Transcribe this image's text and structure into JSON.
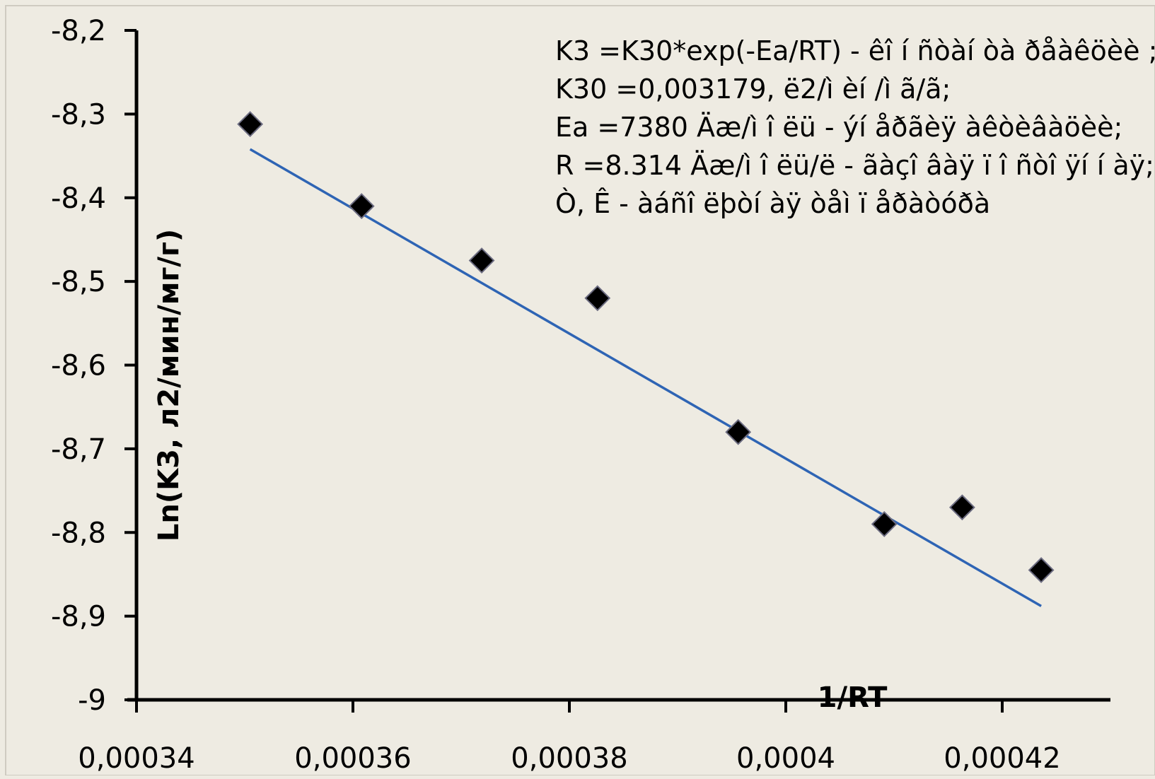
{
  "chart_data": {
    "type": "scatter",
    "title": "",
    "xlabel": "1/RT",
    "ylabel": "Ln(K3, л2/мин/мг/г)",
    "xlim": [
      0.00034,
      0.00043
    ],
    "ylim": [
      -9,
      -8.2
    ],
    "x_ticks": [
      0.00034,
      0.00036,
      0.00038,
      0.0004,
      0.00042
    ],
    "x_tick_labels": [
      "0,00034",
      "0,00036",
      "0,00038",
      "0,0004",
      "0,00042"
    ],
    "y_ticks": [
      -8.2,
      -8.3,
      -8.4,
      -8.5,
      -8.6,
      -8.7,
      -8.8,
      -8.9,
      -9
    ],
    "y_tick_labels": [
      "-8,2",
      "-8,3",
      "-8,4",
      "-8,5",
      "-8,6",
      "-8,7",
      "-8,8",
      "-8,9",
      "-9"
    ],
    "grid": false,
    "series": [
      {
        "marker": "diamond",
        "color": "#000000",
        "x": [
          0.0003505,
          0.0003608,
          0.0003719,
          0.0003826,
          0.0003956,
          0.0004091,
          0.0004163,
          0.0004236
        ],
        "y": [
          -8.312,
          -8.41,
          -8.475,
          -8.52,
          -8.68,
          -8.79,
          -8.77,
          -8.845
        ]
      }
    ],
    "trendline": {
      "color": "#2e64b4",
      "x": [
        0.0003505,
        0.0004236
      ],
      "y": [
        -8.342,
        -8.888
      ]
    },
    "annotation_lines": [
      "K3 =K30*exp(-Ea/RT) - êî í ñòàí òà ðåàêöèè ;",
      "K30 =0,003179, ë2/ì èí /ì ã/ã;",
      "Ea =7380 Äæ/ì î ëü - ýí åðãèÿ àêòèâàöèè;",
      "R =8.314 Äæ/ì î ëü/ë - ãàçî âàÿ ï î ñòî ÿí í àÿ;",
      "Ò, Ê - àáñî ëþòí àÿ òåì ï åðàòóðà"
    ]
  }
}
